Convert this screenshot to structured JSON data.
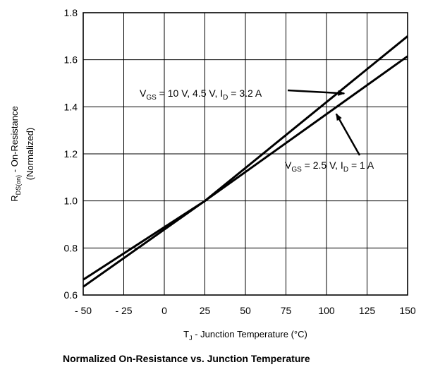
{
  "chart_data": {
    "type": "line",
    "title": "Normalized On-Resistance vs. Junction Temperature",
    "xlabel": {
      "base": "T",
      "sub": "J",
      "rest": " - Junction Temperature (°C)"
    },
    "ylabel": {
      "line1_base": "R",
      "line1_sub": "DS(on)",
      "line1_rest": " - On-Resistance",
      "line2": "(Normalized)"
    },
    "xlim": [
      -50,
      150
    ],
    "ylim": [
      0.6,
      1.8
    ],
    "x_ticks": [
      -50,
      -25,
      0,
      25,
      50,
      75,
      100,
      125,
      150
    ],
    "x_tick_labels": [
      "- 50",
      "- 25",
      "0",
      "25",
      "50",
      "75",
      "100",
      "125",
      "150"
    ],
    "y_ticks": [
      0.6,
      0.8,
      1.0,
      1.2,
      1.4,
      1.6,
      1.8
    ],
    "y_tick_labels": [
      "0.6",
      "0.8",
      "1.0",
      "1.2",
      "1.4",
      "1.6",
      "1.8"
    ],
    "grid": true,
    "series": [
      {
        "x": [
          -50,
          25,
          150
        ],
        "y": [
          0.635,
          1.0,
          1.7
        ],
        "annotation": {
          "parts": [
            {
              "t": "V",
              "sub": false
            },
            {
              "t": "GS",
              "sub": true
            },
            {
              "t": " = 10 V, 4.5 V, I",
              "sub": false
            },
            {
              "t": "D",
              "sub": true
            },
            {
              "t": " = 3.2 A",
              "sub": false
            }
          ],
          "arrow_to": [
            111,
            1.457
          ]
        }
      },
      {
        "x": [
          -50,
          25,
          150
        ],
        "y": [
          0.665,
          1.0,
          1.615
        ],
        "annotation": {
          "parts": [
            {
              "t": "V",
              "sub": false
            },
            {
              "t": "GS",
              "sub": true
            },
            {
              "t": " = 2.5 V, I",
              "sub": false
            },
            {
              "t": "D",
              "sub": true
            },
            {
              "t": " = 1 A",
              "sub": false
            }
          ],
          "arrow_to": [
            106,
            1.37
          ]
        }
      }
    ]
  }
}
